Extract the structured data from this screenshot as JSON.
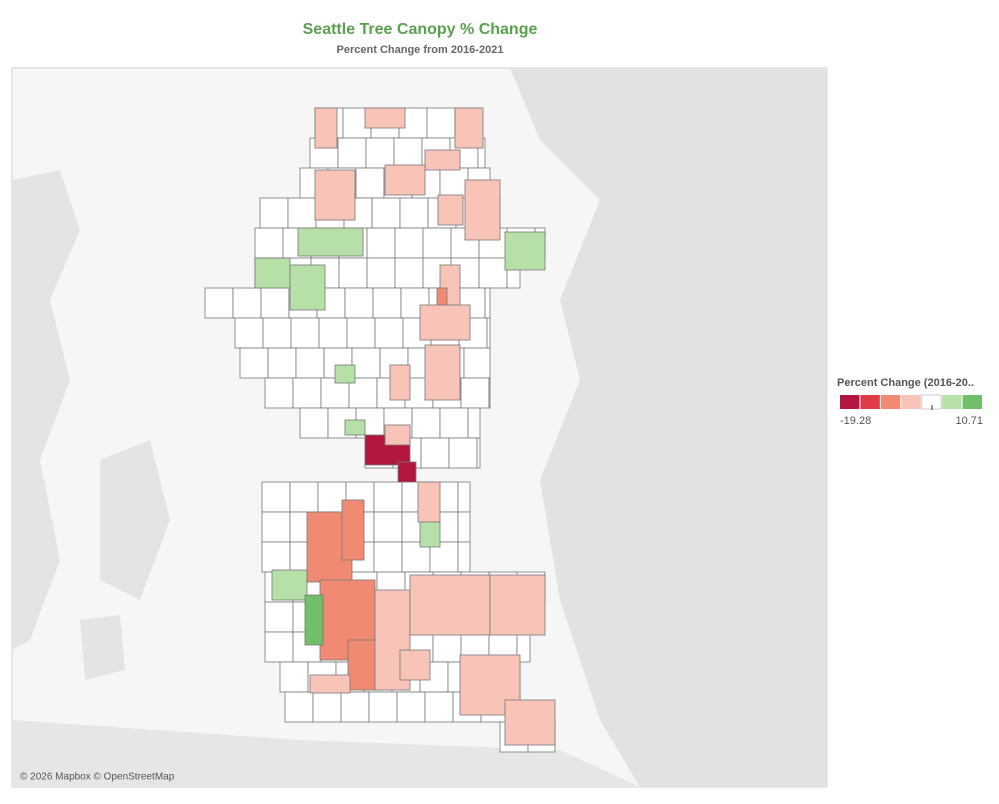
{
  "title": "Seattle Tree Canopy % Change",
  "subtitle": "Percent Change from 2016-2021",
  "legend": {
    "title": "Percent Change (2016-20..",
    "min": -19.28,
    "max": 10.71,
    "colors": [
      "#b3173f",
      "#e03c48",
      "#f08a72",
      "#f9c4b8",
      "#ffffff",
      "#b7e0a8",
      "#72bf6a"
    ]
  },
  "attribution": "© 2026 Mapbox © OpenStreetMap"
}
